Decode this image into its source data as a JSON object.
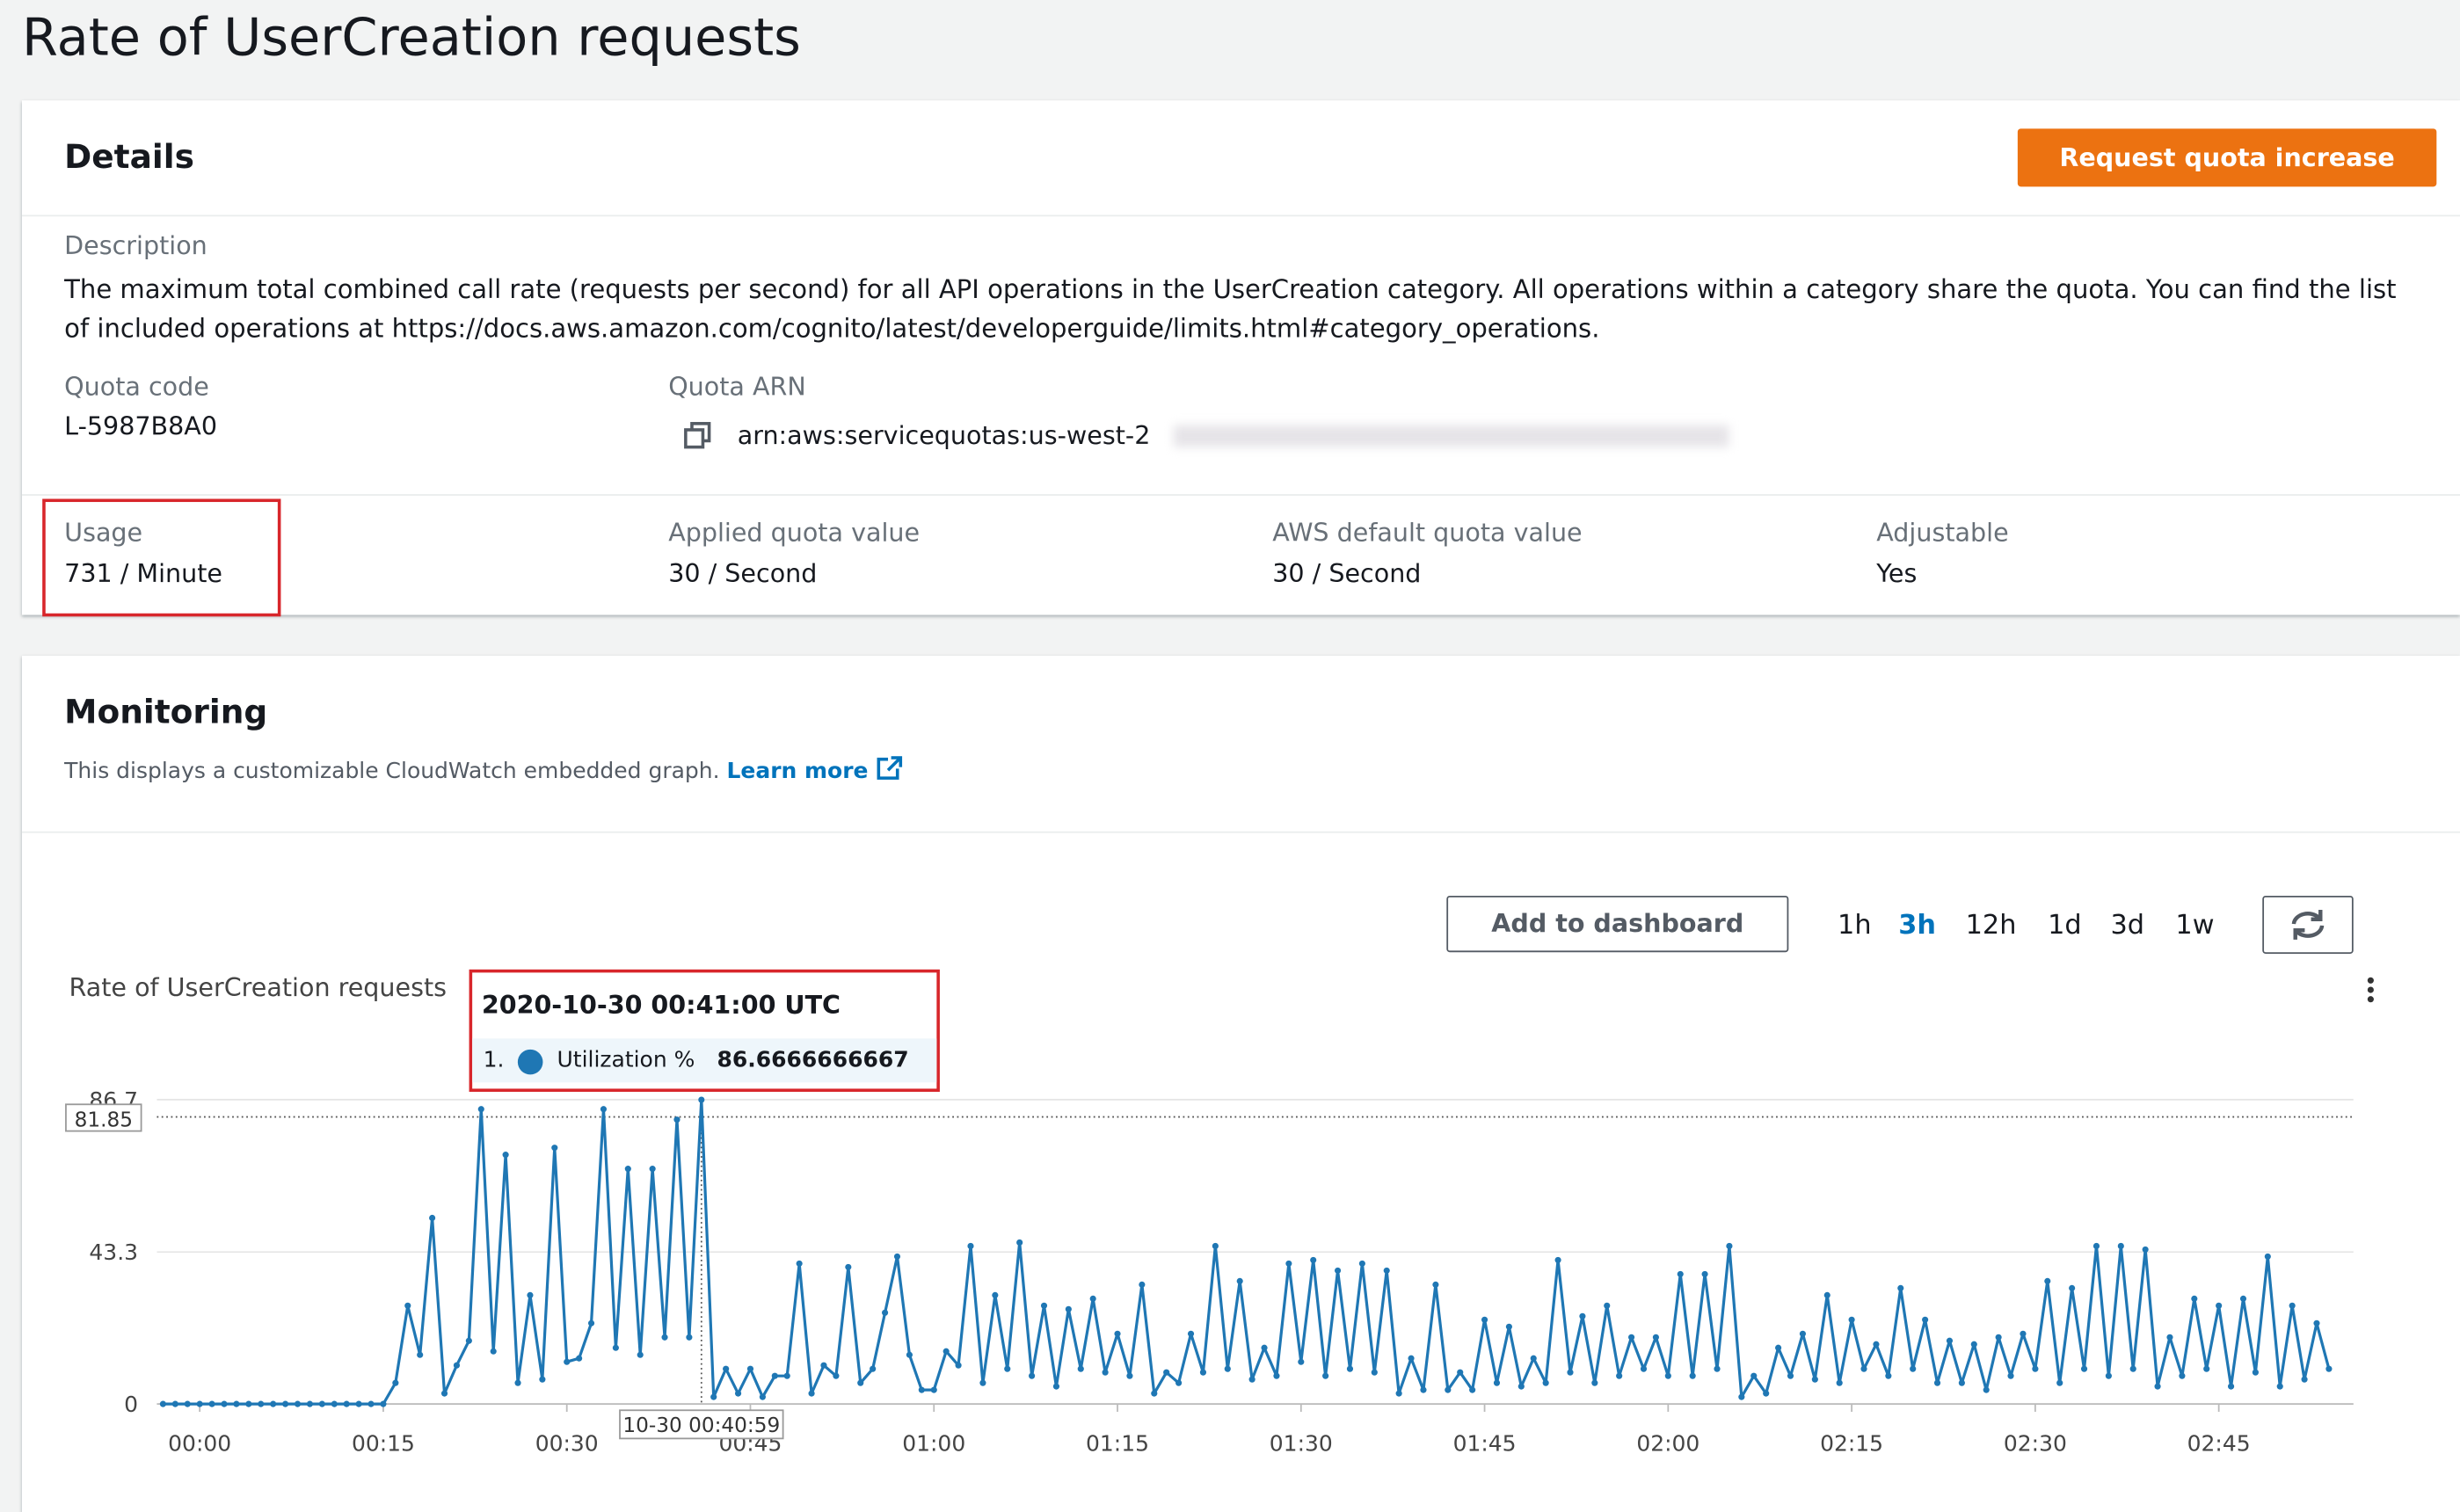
{
  "header": {
    "title": "Rate of UserCreation requests"
  },
  "details": {
    "title": "Details",
    "button": "Request quota increase",
    "description_label": "Description",
    "description": "The maximum total combined call rate (requests per second) for all API operations in the UserCreation category. All operations within a category share the quota. You can find the list of included operations at https://docs.aws.amazon.com/cognito/latest/developerguide/limits.html#category_operations.",
    "quota_code_label": "Quota code",
    "quota_code": "L-5987B8A0",
    "quota_arn_label": "Quota ARN",
    "quota_arn": "arn:aws:servicequotas:us-west-2",
    "fields": [
      {
        "label": "Usage",
        "value": "731 / Minute"
      },
      {
        "label": "Applied quota value",
        "value": "30 / Second"
      },
      {
        "label": "AWS default quota value",
        "value": "30 / Second"
      },
      {
        "label": "Adjustable",
        "value": "Yes"
      }
    ]
  },
  "monitoring": {
    "title": "Monitoring",
    "subtitle": "This displays a customizable CloudWatch embedded graph.",
    "learn_more": "Learn more",
    "add_to_dashboard": "Add to dashboard",
    "ranges": [
      "1h",
      "3h",
      "12h",
      "1d",
      "3d",
      "1w"
    ],
    "selected_range_index": 1
  },
  "chart_data": {
    "type": "line",
    "title": "Rate of UserCreation requests",
    "x": [
      -3,
      -2,
      -1,
      0,
      1,
      2,
      3,
      4,
      5,
      6,
      7,
      8,
      9,
      10,
      11,
      12,
      13,
      14,
      15,
      16,
      17,
      18,
      19,
      20,
      21,
      22,
      23,
      24,
      25,
      26,
      27,
      28,
      29,
      30,
      31,
      32,
      33,
      34,
      35,
      36,
      37,
      38,
      39,
      40,
      41,
      42,
      43,
      44,
      45,
      46,
      47,
      48,
      49,
      50,
      51,
      52,
      53,
      54,
      55,
      56,
      57,
      58,
      59,
      60,
      61,
      62,
      63,
      64,
      65,
      66,
      67,
      68,
      69,
      70,
      71,
      72,
      73,
      74,
      75,
      76,
      77,
      78,
      79,
      80,
      81,
      82,
      83,
      84,
      85,
      86,
      87,
      88,
      89,
      90,
      91,
      92,
      93,
      94,
      95,
      96,
      97,
      98,
      99,
      100,
      101,
      102,
      103,
      104,
      105,
      106,
      107,
      108,
      109,
      110,
      111,
      112,
      113,
      114,
      115,
      116,
      117,
      118,
      119,
      120,
      121,
      122,
      123,
      124,
      125,
      126,
      127,
      128,
      129,
      130,
      131,
      132,
      133,
      134,
      135,
      136,
      137,
      138,
      139,
      140,
      141,
      142,
      143,
      144,
      145,
      146,
      147,
      148,
      149,
      150,
      151,
      152,
      153,
      154,
      155,
      156,
      157,
      158,
      159,
      160,
      161,
      162,
      163,
      164,
      165,
      166,
      167,
      168,
      169,
      170,
      171,
      172,
      173,
      174
    ],
    "series": [
      {
        "name": "Utilization %",
        "color": "#1f77b4",
        "values": [
          0,
          0,
          0,
          0,
          0,
          0,
          0,
          0,
          0,
          0,
          0,
          0,
          0,
          0,
          0,
          0,
          0,
          0,
          0,
          6,
          28,
          14,
          53,
          3,
          11,
          18,
          84,
          15,
          71,
          6,
          31,
          7,
          73,
          12,
          13,
          23,
          84,
          16,
          67,
          14,
          67,
          19,
          81,
          19,
          86.67,
          2,
          10,
          3,
          10,
          2,
          8,
          8,
          40,
          3,
          11,
          8,
          39,
          6,
          10,
          26,
          42,
          14,
          4,
          4,
          15,
          11,
          45,
          6,
          31,
          10,
          46,
          8,
          28,
          5,
          27,
          10,
          30,
          9,
          20,
          8,
          34,
          3,
          9,
          6,
          20,
          9,
          45,
          10,
          35,
          7,
          16,
          8,
          40,
          12,
          41,
          8,
          38,
          10,
          40,
          9,
          38,
          3,
          13,
          4,
          34,
          4,
          9,
          4,
          24,
          6,
          22,
          5,
          13,
          6,
          41,
          9,
          25,
          6,
          28,
          8,
          19,
          10,
          19,
          8,
          37,
          8,
          37,
          10,
          45,
          2,
          8,
          3,
          16,
          8,
          20,
          7,
          31,
          6,
          24,
          10,
          17,
          8,
          33,
          10,
          24,
          6,
          18,
          6,
          17,
          4,
          19,
          8,
          20,
          10,
          35,
          6,
          33,
          10,
          45,
          8,
          45,
          10,
          44,
          5,
          19,
          8,
          30,
          10,
          28,
          5,
          30,
          9,
          42,
          5,
          28,
          7,
          23,
          10
        ]
      }
    ],
    "xlim": [
      -3.5,
      176
    ],
    "xticks": [
      {
        "value": 0,
        "label": "00:00"
      },
      {
        "value": 15,
        "label": "00:15"
      },
      {
        "value": 30,
        "label": "00:30"
      },
      {
        "value": 45,
        "label": "00:45"
      },
      {
        "value": 60,
        "label": "01:00"
      },
      {
        "value": 75,
        "label": "01:15"
      },
      {
        "value": 90,
        "label": "01:30"
      },
      {
        "value": 105,
        "label": "01:45"
      },
      {
        "value": 120,
        "label": "02:00"
      },
      {
        "value": 135,
        "label": "02:15"
      },
      {
        "value": 150,
        "label": "02:30"
      },
      {
        "value": 165,
        "label": "02:45"
      }
    ],
    "ylim": [
      0,
      86.7
    ],
    "yticks": [
      0,
      43.3,
      86.7
    ],
    "grid": true,
    "tooltip": {
      "time": "2020-10-30 00:41:00 UTC",
      "index": "1.",
      "value": "86.6666666667"
    },
    "hover_x_label": "10-30 00:40:59",
    "hover_y_label": "81.85"
  }
}
